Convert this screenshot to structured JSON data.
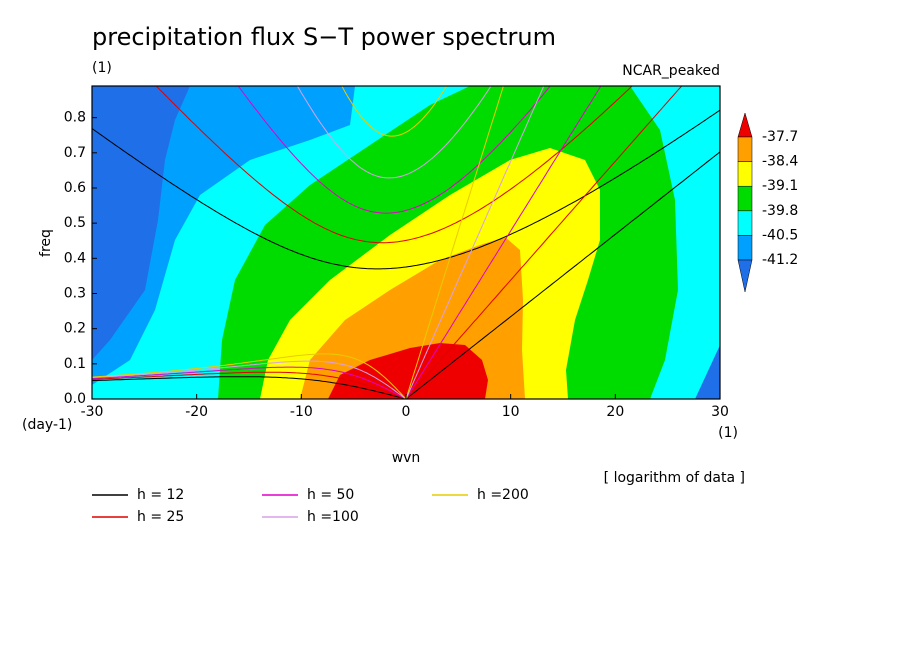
{
  "chart_data": {
    "type": "contour",
    "title": "precipitation flux S−T power spectrum",
    "subtitle": "(1)",
    "annotation": "NCAR_peaked",
    "note": "[ logarithm of data ]",
    "x_label": "wvn",
    "y_label": "freq",
    "x_unit": "(1)",
    "y_unit": "(day-1)",
    "xlim": [
      -30,
      30
    ],
    "xticks": [
      -30,
      -20,
      -10,
      0,
      10,
      20,
      30
    ],
    "ylim": [
      0,
      0.89
    ],
    "yticks": [
      {
        "value": 0,
        "label": "0.0"
      },
      0.1,
      0.2,
      0.3,
      0.4,
      0.5,
      0.6,
      0.7,
      0.8
    ],
    "levels": [
      -41.2,
      -40.5,
      -39.8,
      -39.1,
      -38.4,
      -37.7
    ],
    "colors": [
      "#1f6fe8",
      "#00a0ff",
      "#00ffff",
      "#00dc00",
      "#ffff00",
      "#ffa000",
      "#ee0000"
    ],
    "series": [
      {
        "name": "h = 12",
        "h": 12,
        "color": "#000000"
      },
      {
        "name": "h = 25",
        "h": 25,
        "color": "#e00000"
      },
      {
        "name": "h = 50",
        "h": 50,
        "color": "#e000c8"
      },
      {
        "name": "h =100",
        "h": 100,
        "color": "#d8a0e8"
      },
      {
        "name": "h =200",
        "h": 200,
        "color": "#e8cc00"
      }
    ]
  }
}
